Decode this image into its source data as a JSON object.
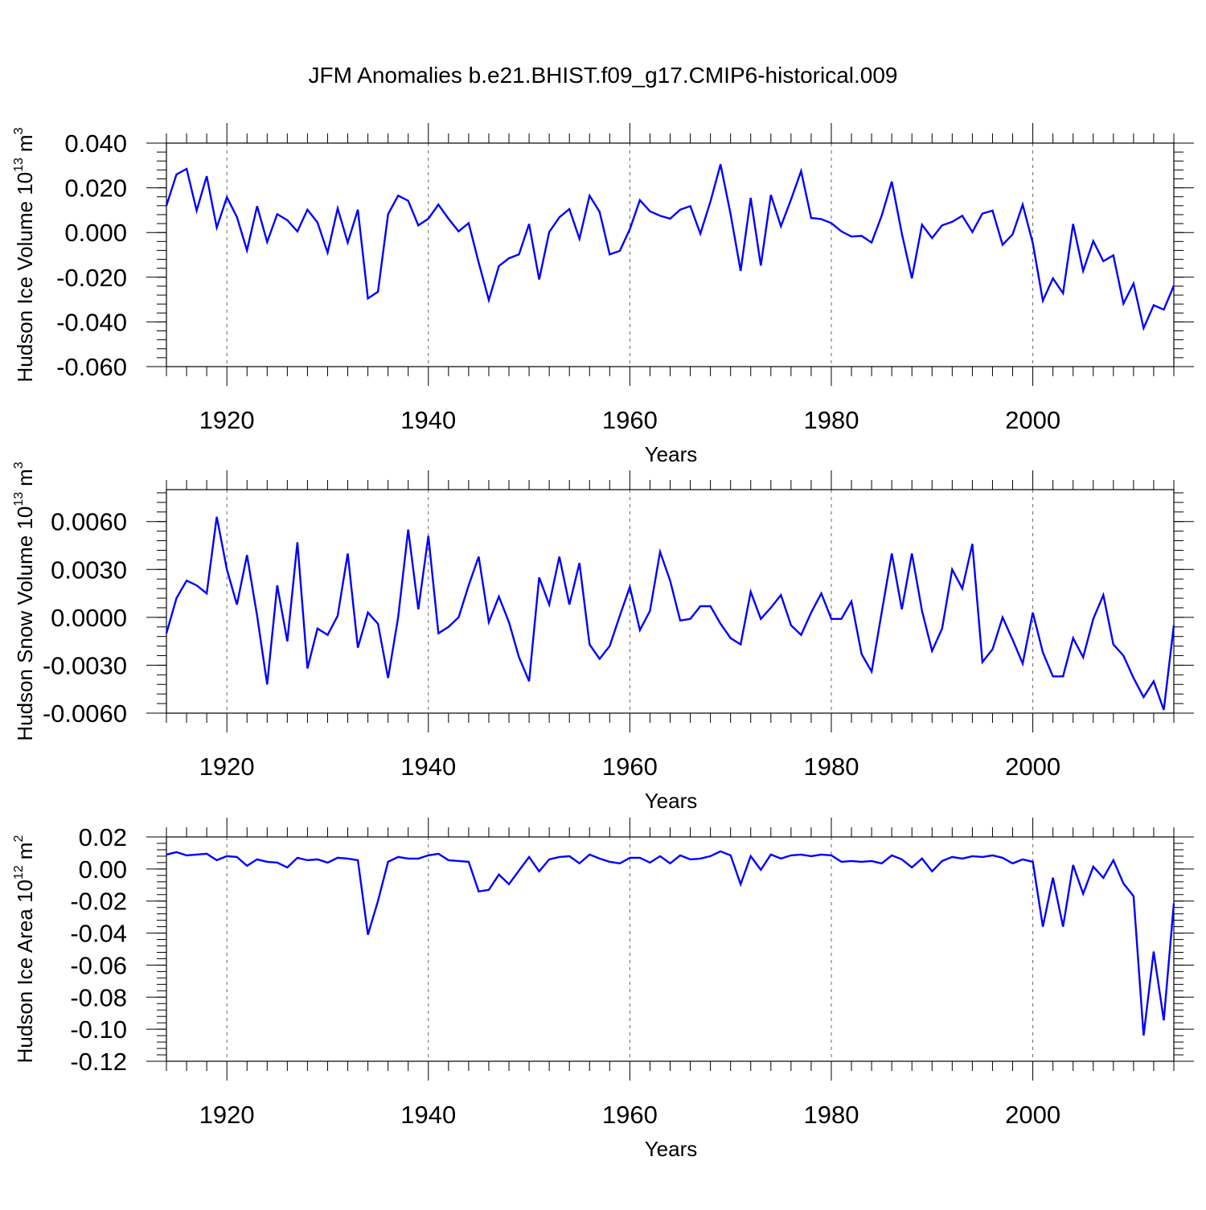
{
  "figure": {
    "title": "JFM Anomalies b.e21.BHIST.f09_g17.CMIP6-historical.009"
  },
  "chart_data": [
    {
      "type": "line",
      "title": "",
      "xlabel": "Years",
      "ylabel_main": "Hudson Ice Volume 10",
      "ylabel_exp": "13",
      "ylabel_unit": "m",
      "ylabel_unit_exp": "3",
      "xlim": [
        1914,
        2014
      ],
      "ylim": [
        -0.06,
        0.04
      ],
      "x_ticks": [
        1920,
        1940,
        1960,
        1980,
        2000
      ],
      "x_tick_labels": [
        "1920",
        "1940",
        "1960",
        "1980",
        "2000"
      ],
      "y_ticks": [
        -0.06,
        -0.04,
        -0.02,
        0.0,
        0.02,
        0.04
      ],
      "y_tick_labels": [
        "-0.060",
        "-0.040",
        "-0.020",
        "0.000",
        "0.020",
        "0.040"
      ],
      "color": "#0000ff",
      "series": [
        {
          "name": "Hudson Ice Volume",
          "x_start": 1914,
          "values": [
            0.012,
            0.026,
            0.0285,
            0.0098,
            0.0252,
            0.0022,
            0.0158,
            0.0069,
            -0.008,
            0.0118,
            -0.0042,
            0.0082,
            0.0055,
            0.0005,
            0.0102,
            0.0045,
            -0.009,
            0.0108,
            -0.0045,
            0.0102,
            -0.0295,
            -0.0265,
            0.0082,
            0.0165,
            0.0142,
            0.0032,
            0.0062,
            0.0125,
            0.0062,
            0.0005,
            0.0042,
            -0.0135,
            -0.0302,
            -0.015,
            -0.0115,
            -0.0098,
            0.0038,
            -0.021,
            0.0002,
            0.0068,
            0.0105,
            -0.0028,
            0.0165,
            0.0092,
            -0.0098,
            -0.0082,
            0.0015,
            0.0145,
            0.0095,
            0.0075,
            0.0062,
            0.0102,
            0.0118,
            -0.0005,
            0.0138,
            0.0305,
            0.0082,
            -0.0172,
            0.0155,
            -0.0148,
            0.0168,
            0.0028,
            0.0148,
            0.0275,
            0.0065,
            0.006,
            0.0042,
            0.0005,
            -0.0018,
            -0.0015,
            -0.0045,
            0.0075,
            0.0228,
            -0.0005,
            -0.0205,
            0.0035,
            -0.0025,
            0.0032,
            0.0048,
            0.0075,
            0.0002,
            0.0085,
            0.0098,
            -0.0055,
            -0.0008,
            0.0125,
            -0.0048,
            -0.0305,
            -0.0205,
            -0.0272,
            0.0038,
            -0.0172,
            -0.0038,
            -0.0128,
            -0.0102,
            -0.0318,
            -0.0228,
            -0.0428,
            -0.0325,
            -0.0345,
            -0.0238
          ]
        }
      ]
    },
    {
      "type": "line",
      "title": "",
      "xlabel": "Years",
      "ylabel_main": "Hudson Snow Volume 10",
      "ylabel_exp": "13",
      "ylabel_unit": "m",
      "ylabel_unit_exp": "3",
      "xlim": [
        1914,
        2014
      ],
      "ylim": [
        -0.006,
        0.008
      ],
      "x_ticks": [
        1920,
        1940,
        1960,
        1980,
        2000
      ],
      "x_tick_labels": [
        "1920",
        "1940",
        "1960",
        "1980",
        "2000"
      ],
      "y_ticks": [
        -0.006,
        -0.003,
        0.0,
        0.003,
        0.006
      ],
      "y_tick_labels": [
        "-0.0060",
        "-0.0030",
        "0.0000",
        "0.0030",
        "0.0060"
      ],
      "color": "#0000ff",
      "series": [
        {
          "name": "Hudson Snow Volume",
          "x_start": 1914,
          "values": [
            -0.001,
            0.0012,
            0.0023,
            0.002,
            0.0015,
            0.0063,
            0.003,
            0.0008,
            0.0039,
            0.0001,
            -0.0042,
            0.002,
            -0.0015,
            0.0047,
            -0.0032,
            -0.0007,
            -0.0011,
            0.0001,
            0.004,
            -0.0019,
            0.0003,
            -0.0004,
            -0.0038,
            0.0,
            0.0055,
            0.0005,
            0.0051,
            -0.001,
            -0.0006,
            0.0,
            0.002,
            0.0038,
            -0.0003,
            0.0013,
            -0.0003,
            -0.0025,
            -0.004,
            0.0025,
            0.0008,
            0.0038,
            0.0008,
            0.0034,
            -0.0017,
            -0.0026,
            -0.0018,
            0.0001,
            0.0019,
            -0.0008,
            0.0004,
            0.0041,
            0.0023,
            -0.0002,
            -0.0001,
            0.0007,
            0.0007,
            -0.0004,
            -0.0013,
            -0.0017,
            0.0016,
            -0.0001,
            0.0006,
            0.0014,
            -0.0005,
            -0.0011,
            0.0003,
            0.0015,
            -0.0001,
            -0.0001,
            0.001,
            -0.0023,
            -0.0034,
            0.0003,
            0.004,
            0.0005,
            0.004,
            0.0004,
            -0.0021,
            -0.0007,
            0.003,
            0.0018,
            0.0046,
            -0.0028,
            -0.002,
            0.0,
            -0.0014,
            -0.0029,
            0.0003,
            -0.0022,
            -0.0037,
            -0.0037,
            -0.0013,
            -0.0025,
            -0.0001,
            0.0014,
            -0.0017,
            -0.0024,
            -0.0038,
            -0.005,
            -0.004,
            -0.0058,
            -0.0005
          ]
        }
      ]
    },
    {
      "type": "line",
      "title": "",
      "xlabel": "Years",
      "ylabel_main": "Hudson Ice Area 10",
      "ylabel_exp": "12",
      "ylabel_unit": "m",
      "ylabel_unit_exp": "2",
      "xlim": [
        1914,
        2014
      ],
      "ylim": [
        -0.12,
        0.02
      ],
      "x_ticks": [
        1920,
        1940,
        1960,
        1980,
        2000
      ],
      "x_tick_labels": [
        "1920",
        "1940",
        "1960",
        "1980",
        "2000"
      ],
      "y_ticks": [
        -0.12,
        -0.1,
        -0.08,
        -0.06,
        -0.04,
        -0.02,
        0.0,
        0.02
      ],
      "y_tick_labels": [
        "-0.12",
        "-0.10",
        "-0.08",
        "-0.06",
        "-0.04",
        "-0.02",
        "0.00",
        "0.02"
      ],
      "color": "#0000ff",
      "series": [
        {
          "name": "Hudson Ice Area",
          "x_start": 1914,
          "values": [
            0.009,
            0.0105,
            0.0085,
            0.009,
            0.0095,
            0.0055,
            0.008,
            0.0075,
            0.002,
            0.006,
            0.0045,
            0.004,
            0.001,
            0.007,
            0.0055,
            0.006,
            0.004,
            0.007,
            0.0065,
            0.0055,
            -0.041,
            -0.02,
            0.0045,
            0.0075,
            0.0065,
            0.0065,
            0.0085,
            0.0095,
            0.0055,
            0.005,
            0.0045,
            -0.014,
            -0.013,
            -0.0035,
            -0.0095,
            -0.001,
            0.0075,
            -0.0015,
            0.006,
            0.0075,
            0.008,
            0.0035,
            0.009,
            0.0065,
            0.0045,
            0.0035,
            0.007,
            0.007,
            0.004,
            0.008,
            0.0035,
            0.0085,
            0.006,
            0.0065,
            0.008,
            0.011,
            0.0085,
            -0.0095,
            0.008,
            -0.0005,
            0.009,
            0.0065,
            0.0085,
            0.009,
            0.008,
            0.009,
            0.0085,
            0.0045,
            0.005,
            0.0045,
            0.005,
            0.0035,
            0.0085,
            0.006,
            0.001,
            0.0065,
            -0.0015,
            0.005,
            0.0075,
            0.0065,
            0.008,
            0.0075,
            0.0085,
            0.007,
            0.0035,
            0.006,
            0.0045,
            -0.036,
            -0.0055,
            -0.036,
            0.0025,
            -0.0155,
            0.0015,
            -0.0055,
            0.0055,
            -0.009,
            -0.017,
            -0.104,
            -0.0515,
            -0.0945,
            -0.0215
          ]
        }
      ]
    }
  ]
}
